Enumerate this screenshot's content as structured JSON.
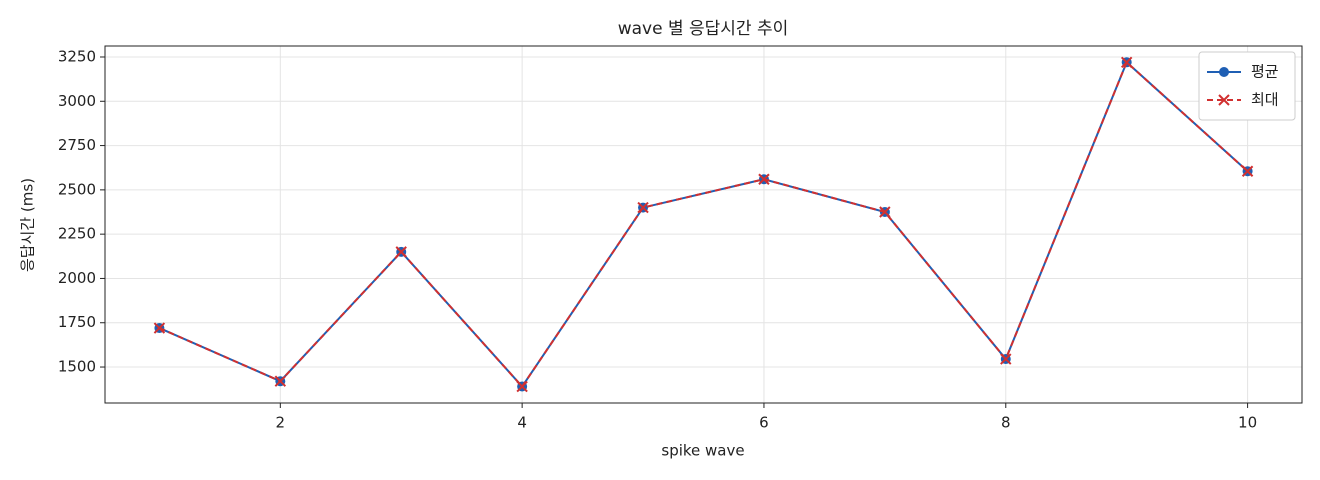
{
  "chart_data": {
    "type": "line",
    "title": "wave 별 응답시간 추이",
    "xlabel": "spike wave",
    "ylabel": "응답시간 (ms)",
    "x": [
      1,
      2,
      3,
      4,
      5,
      6,
      7,
      8,
      9,
      10
    ],
    "series": [
      {
        "name": "평균",
        "color": "#1f5fb4",
        "linestyle": "solid",
        "marker": "o",
        "values": [
          1720,
          1420,
          2150,
          1390,
          2400,
          2560,
          2375,
          1545,
          3220,
          2605
        ]
      },
      {
        "name": "최대",
        "color": "#d13030",
        "linestyle": "dashed",
        "marker": "x",
        "values": [
          1720,
          1420,
          2150,
          1390,
          2400,
          2560,
          2375,
          1545,
          3220,
          2605
        ]
      }
    ],
    "xlim": [
      0.55,
      10.45
    ],
    "xticks": [
      2,
      4,
      6,
      8,
      10
    ],
    "ylim": [
      1297,
      3312
    ],
    "yticks": [
      1500,
      1750,
      2000,
      2250,
      2500,
      2750,
      3000,
      3250
    ],
    "grid": true,
    "legend": "upper right"
  }
}
